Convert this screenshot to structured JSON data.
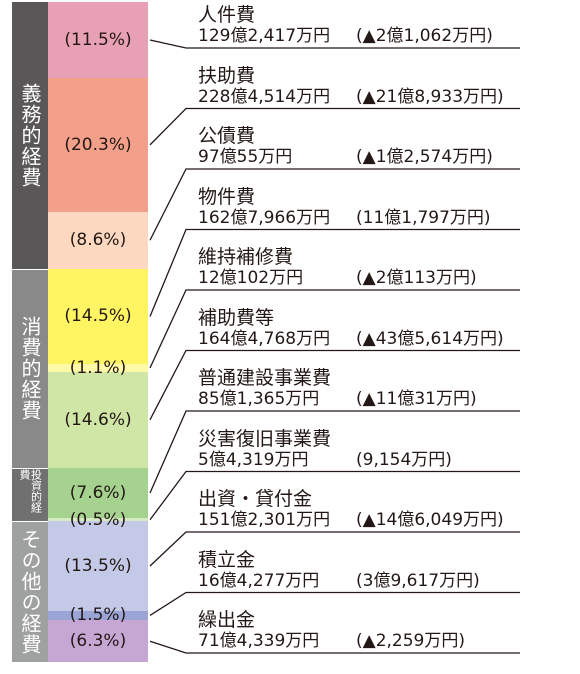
{
  "chart_data": {
    "type": "bar",
    "stacked": true,
    "groups": [
      {
        "label": "義務的経費",
        "first": 0,
        "last": 2,
        "color": "#595757"
      },
      {
        "label": "消費的経費",
        "first": 3,
        "last": 5,
        "color": "#898989"
      },
      {
        "label": "投資的経費",
        "first": 6,
        "last": 7,
        "color": "#717071"
      },
      {
        "label": "その他の経費",
        "first": 8,
        "last": 10,
        "color": "#9fa0a0"
      }
    ],
    "series": [
      {
        "name": "人件費",
        "percent": 11.5,
        "percent_label": "(11.5%)",
        "amount": "129億2,417万円",
        "change": "(▲2億1,062万円)",
        "color": "#e8a1b4"
      },
      {
        "name": "扶助費",
        "percent": 20.3,
        "percent_label": "(20.3%)",
        "amount": "228億4,514万円",
        "change": "(▲21億8,933万円)",
        "color": "#f3a08a"
      },
      {
        "name": "公債費",
        "percent": 8.6,
        "percent_label": "(8.6%)",
        "amount": "97億55万円",
        "change": "(▲1億2,574万円)",
        "color": "#fbd8bf"
      },
      {
        "name": "物件費",
        "percent": 14.5,
        "percent_label": "(14.5%)",
        "amount": "162億7,966万円",
        "change": "(11億1,797万円)",
        "color": "#fff461"
      },
      {
        "name": "維持補修費",
        "percent": 1.1,
        "percent_label": "(1.1%)",
        "amount": "12億102万円",
        "change": "(▲2億113万円)",
        "color": "#fff9a8"
      },
      {
        "name": "補助費等",
        "percent": 14.6,
        "percent_label": "(14.6%)",
        "amount": "164億4,768万円",
        "change": "(▲43億5,614万円)",
        "color": "#cfe6a6"
      },
      {
        "name": "普通建設事業費",
        "percent": 7.6,
        "percent_label": "(7.6%)",
        "amount": "85億1,365万円",
        "change": "(▲11億31万円)",
        "color": "#a6d28f"
      },
      {
        "name": "災害復旧事業費",
        "percent": 0.5,
        "percent_label": "(0.5%)",
        "amount": "5億4,319万円",
        "change": "(9,154万円)",
        "color": "#d6ebc4"
      },
      {
        "name": "出資・貸付金",
        "percent": 13.5,
        "percent_label": "(13.5%)",
        "amount": "151億2,301万円",
        "change": "(▲14億6,049万円)",
        "color": "#c3c9e6"
      },
      {
        "name": "積立金",
        "percent": 1.5,
        "percent_label": "(1.5%)",
        "amount": "16億4,277万円",
        "change": "(3億9,617万円)",
        "color": "#9aa5d6"
      },
      {
        "name": "繰出金",
        "percent": 6.3,
        "percent_label": "(6.3%)",
        "amount": "71億4,339万円",
        "change": "(▲2,259万円)",
        "color": "#c6a7d4"
      }
    ]
  }
}
